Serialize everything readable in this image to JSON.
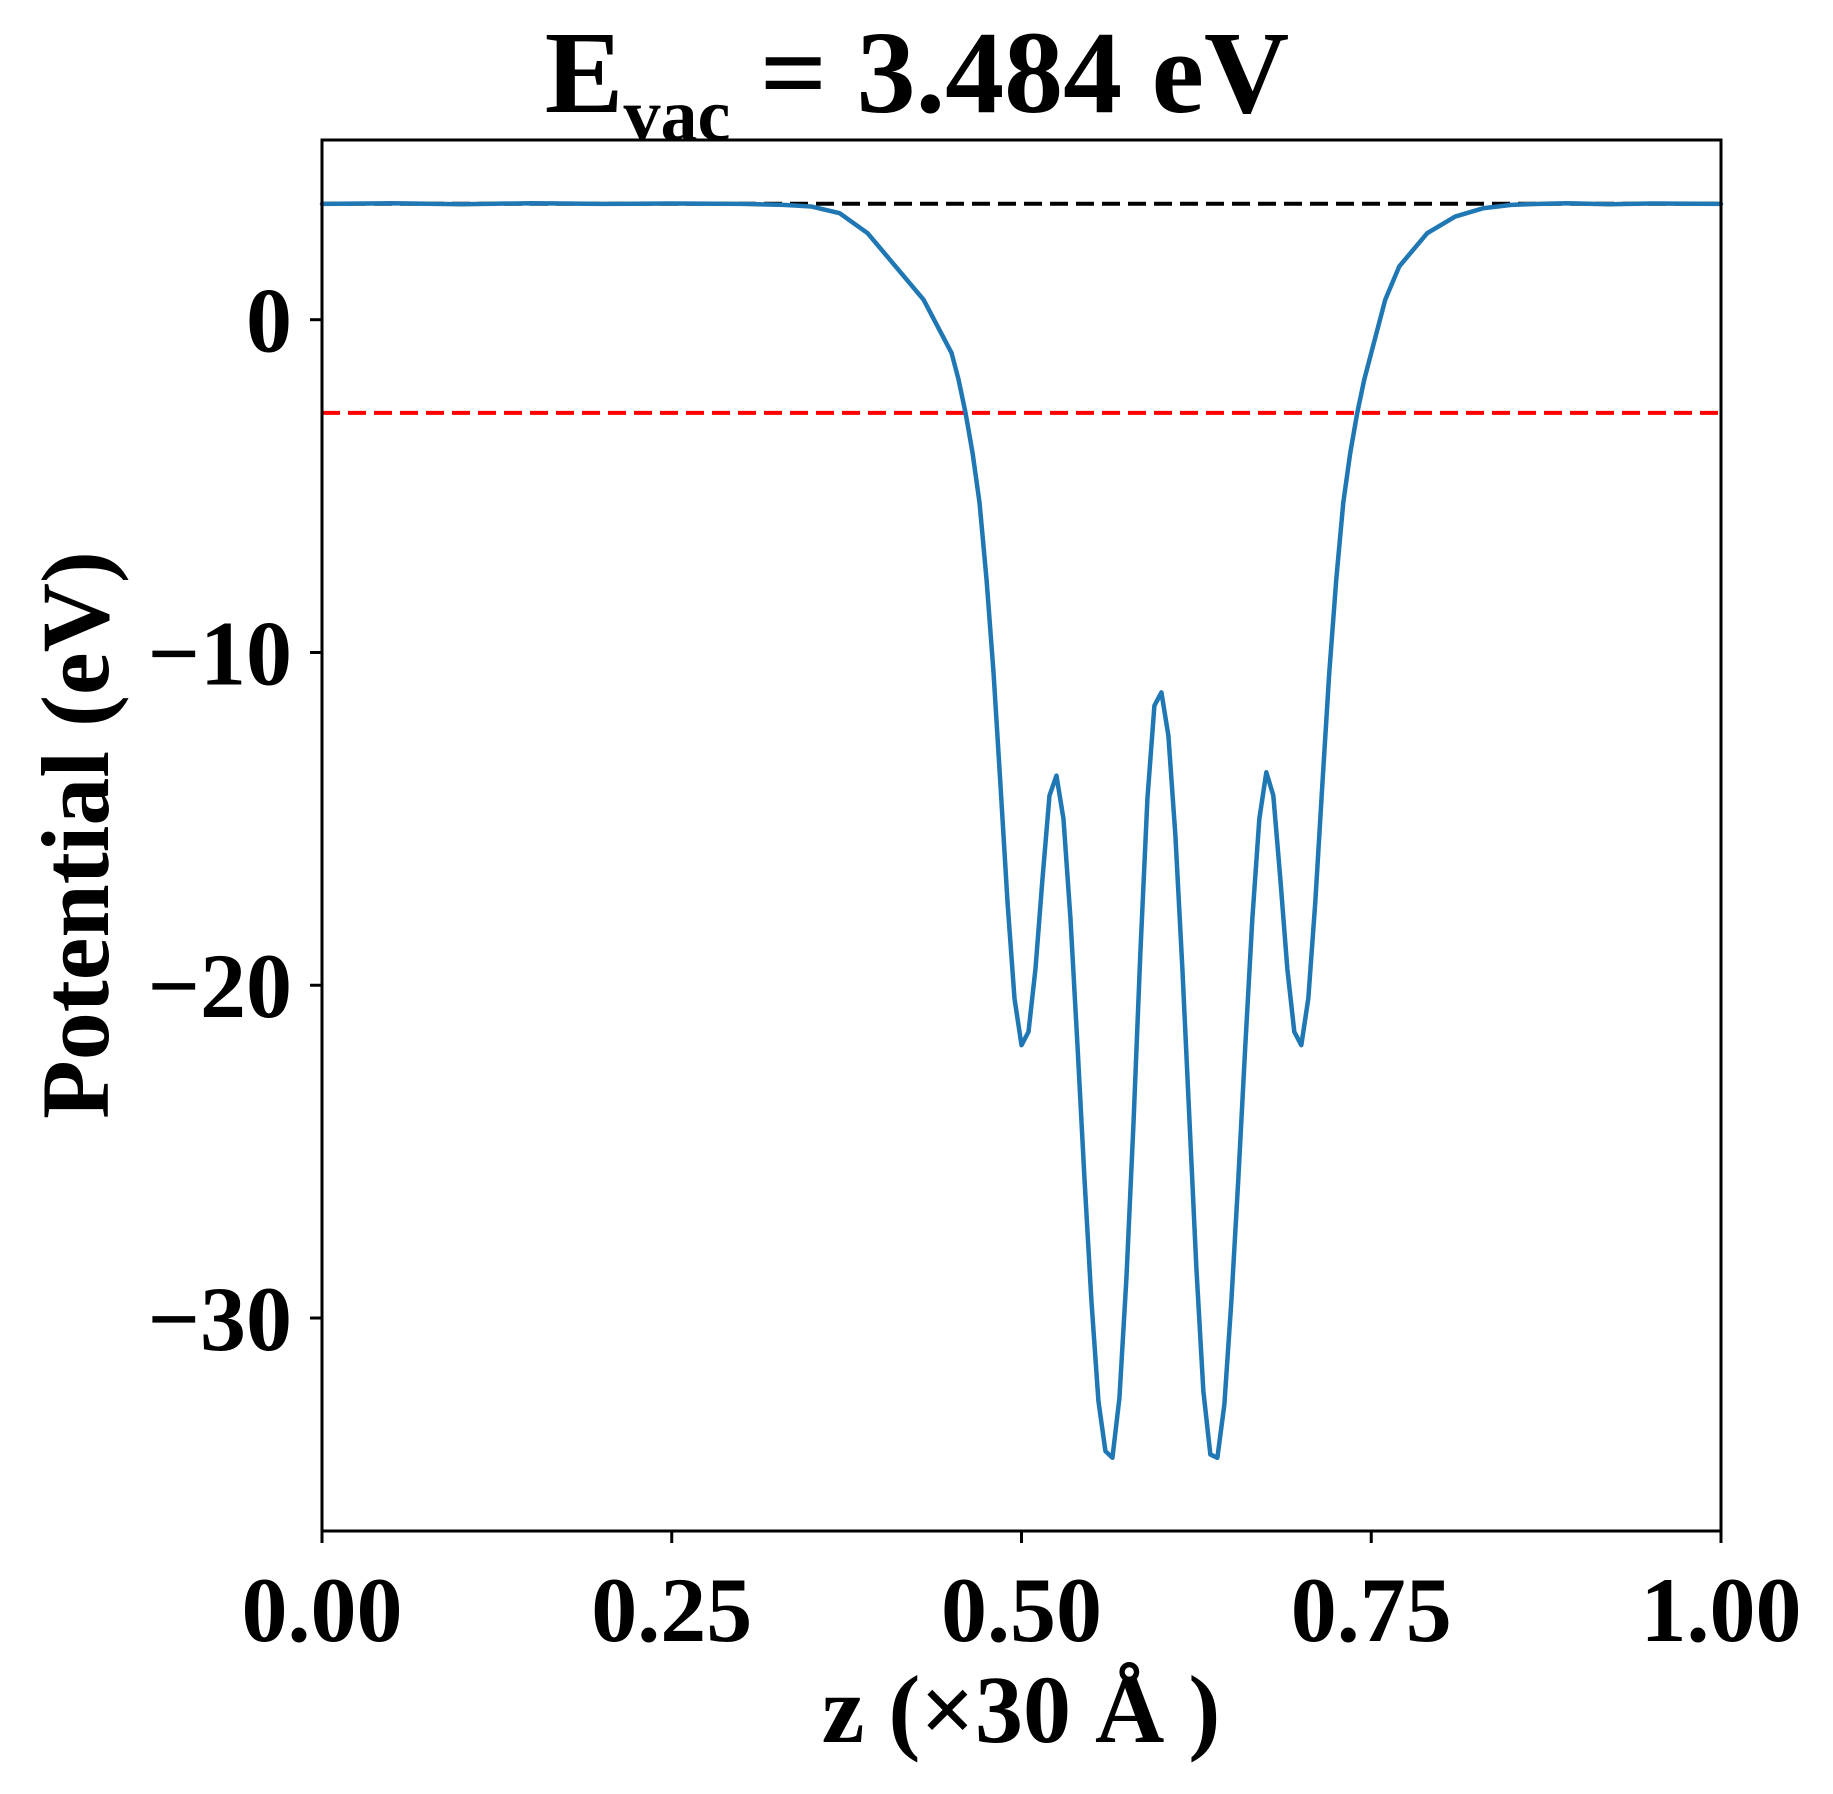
{
  "chart_data": {
    "type": "line",
    "title": {
      "main": "E",
      "sub": "vac",
      "rest": " = 3.484 eV"
    },
    "xlabel": "z (×30 Å )",
    "ylabel": "Potential (eV)",
    "xlim": [
      0.0,
      1.0
    ],
    "ylim": [
      -36.4,
      5.4
    ],
    "xticks": [
      {
        "value": 0.0,
        "label": "0.00"
      },
      {
        "value": 0.25,
        "label": "0.25"
      },
      {
        "value": 0.5,
        "label": "0.50"
      },
      {
        "value": 0.75,
        "label": "0.75"
      },
      {
        "value": 1.0,
        "label": "1.00"
      }
    ],
    "yticks": [
      {
        "value": 0,
        "label": "0"
      },
      {
        "value": -10,
        "label": "−10"
      },
      {
        "value": -20,
        "label": "−20"
      },
      {
        "value": -30,
        "label": "−30"
      }
    ],
    "series": [
      {
        "color": "#1f77b4",
        "x": [
          0.0,
          0.05,
          0.1,
          0.15,
          0.2,
          0.25,
          0.3,
          0.33,
          0.35,
          0.37,
          0.39,
          0.41,
          0.43,
          0.44,
          0.45,
          0.455,
          0.46,
          0.465,
          0.47,
          0.475,
          0.48,
          0.485,
          0.49,
          0.495,
          0.5,
          0.505,
          0.51,
          0.515,
          0.52,
          0.525,
          0.53,
          0.535,
          0.54,
          0.545,
          0.55,
          0.555,
          0.56,
          0.565,
          0.57,
          0.575,
          0.58,
          0.585,
          0.59,
          0.595,
          0.6,
          0.605,
          0.61,
          0.615,
          0.62,
          0.625,
          0.63,
          0.635,
          0.64,
          0.645,
          0.65,
          0.655,
          0.66,
          0.665,
          0.67,
          0.675,
          0.68,
          0.685,
          0.69,
          0.695,
          0.7,
          0.705,
          0.71,
          0.715,
          0.72,
          0.725,
          0.73,
          0.735,
          0.74,
          0.745,
          0.75,
          0.755,
          0.76,
          0.77,
          0.79,
          0.81,
          0.83,
          0.85,
          0.87,
          0.89,
          0.92,
          0.95,
          1.0
        ],
        "y": [
          3.48,
          3.5,
          3.47,
          3.5,
          3.48,
          3.49,
          3.48,
          3.45,
          3.4,
          3.2,
          2.6,
          1.6,
          0.6,
          -0.2,
          -1.0,
          -1.8,
          -2.8,
          -4.0,
          -5.5,
          -7.8,
          -10.6,
          -14.0,
          -17.5,
          -20.4,
          -21.8,
          -21.4,
          -19.5,
          -16.8,
          -14.3,
          -13.7,
          -15.0,
          -18.0,
          -21.8,
          -25.8,
          -29.5,
          -32.5,
          -34.0,
          -34.2,
          -32.4,
          -28.8,
          -24.2,
          -19.0,
          -14.4,
          -11.6,
          -11.2,
          -12.5,
          -15.5,
          -19.5,
          -24.0,
          -28.5,
          -32.2,
          -34.1,
          -34.2,
          -32.6,
          -29.5,
          -25.8,
          -21.8,
          -18.0,
          -15.0,
          -13.6,
          -14.3,
          -16.8,
          -19.5,
          -21.4,
          -21.8,
          -20.4,
          -17.5,
          -14.0,
          -10.6,
          -7.8,
          -5.5,
          -4.0,
          -2.8,
          -1.8,
          -1.0,
          -0.2,
          0.6,
          1.6,
          2.6,
          3.1,
          3.35,
          3.45,
          3.48,
          3.5,
          3.47,
          3.49,
          3.48
        ]
      }
    ],
    "reference_lines": [
      {
        "y": 3.484,
        "color": "#000000",
        "style": "dashed"
      },
      {
        "y": -2.8,
        "color": "#ff0000",
        "style": "dashed"
      }
    ]
  }
}
